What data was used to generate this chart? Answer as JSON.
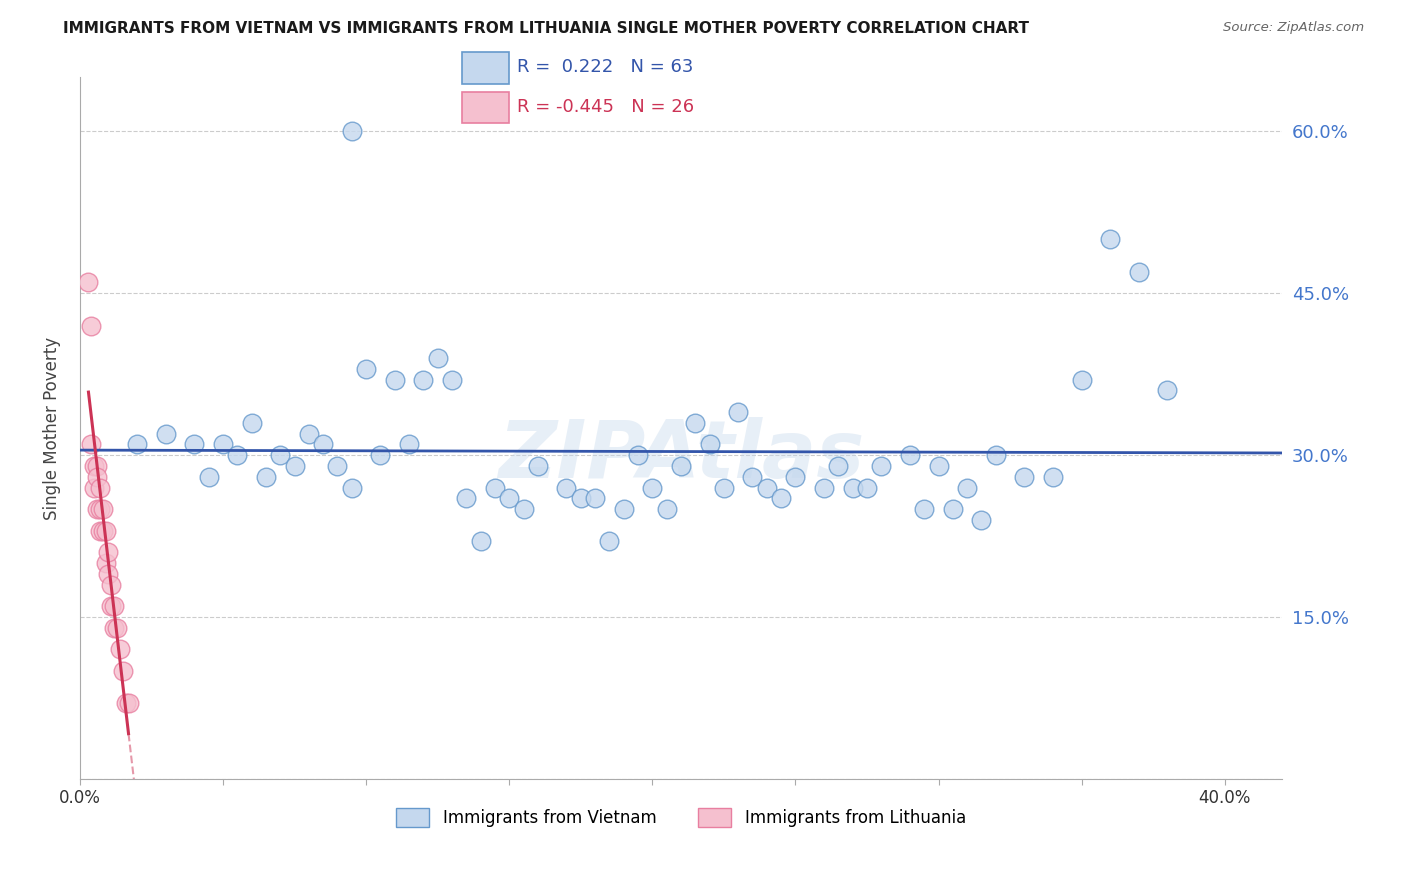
{
  "title": "IMMIGRANTS FROM VIETNAM VS IMMIGRANTS FROM LITHUANIA SINGLE MOTHER POVERTY CORRELATION CHART",
  "source": "Source: ZipAtlas.com",
  "ylabel": "Single Mother Poverty",
  "xlim": [
    0.0,
    0.42
  ],
  "ylim": [
    0.0,
    0.65
  ],
  "x_ticks": [
    0.0,
    0.05,
    0.1,
    0.15,
    0.2,
    0.25,
    0.3,
    0.35,
    0.4
  ],
  "y_ticks": [
    0.0,
    0.15,
    0.3,
    0.45,
    0.6
  ],
  "grid_color": "#cccccc",
  "background_color": "#ffffff",
  "vietnam_fill": "#c5d8ee",
  "vietnam_edge": "#6699cc",
  "lithuania_fill": "#f5c0cf",
  "lithuania_edge": "#e87fa0",
  "trend_vietnam_color": "#3355aa",
  "trend_lithuania_color": "#cc3355",
  "legend_label_vietnam": "Immigrants from Vietnam",
  "legend_label_lithuania": "Immigrants from Lithuania",
  "R_vietnam": "0.222",
  "N_vietnam": "63",
  "R_lithuania": "-0.445",
  "N_lithuania": "26",
  "watermark": "ZIPAtlas",
  "vietnam_x": [
    0.095,
    0.02,
    0.03,
    0.04,
    0.045,
    0.05,
    0.055,
    0.06,
    0.065,
    0.07,
    0.075,
    0.08,
    0.085,
    0.09,
    0.095,
    0.1,
    0.105,
    0.11,
    0.115,
    0.12,
    0.125,
    0.13,
    0.135,
    0.14,
    0.145,
    0.15,
    0.155,
    0.16,
    0.17,
    0.175,
    0.18,
    0.185,
    0.19,
    0.195,
    0.2,
    0.205,
    0.21,
    0.215,
    0.22,
    0.225,
    0.23,
    0.235,
    0.24,
    0.245,
    0.25,
    0.26,
    0.265,
    0.27,
    0.275,
    0.28,
    0.29,
    0.295,
    0.3,
    0.305,
    0.31,
    0.315,
    0.32,
    0.33,
    0.34,
    0.35,
    0.36,
    0.37,
    0.38
  ],
  "vietnam_y": [
    0.6,
    0.31,
    0.32,
    0.31,
    0.28,
    0.31,
    0.3,
    0.33,
    0.28,
    0.3,
    0.29,
    0.32,
    0.31,
    0.29,
    0.27,
    0.38,
    0.3,
    0.37,
    0.31,
    0.37,
    0.39,
    0.37,
    0.26,
    0.22,
    0.27,
    0.26,
    0.25,
    0.29,
    0.27,
    0.26,
    0.26,
    0.22,
    0.25,
    0.3,
    0.27,
    0.25,
    0.29,
    0.33,
    0.31,
    0.27,
    0.34,
    0.28,
    0.27,
    0.26,
    0.28,
    0.27,
    0.29,
    0.27,
    0.27,
    0.29,
    0.3,
    0.25,
    0.29,
    0.25,
    0.27,
    0.24,
    0.3,
    0.28,
    0.28,
    0.37,
    0.5,
    0.47,
    0.36
  ],
  "lithuania_x": [
    0.003,
    0.004,
    0.004,
    0.005,
    0.005,
    0.006,
    0.006,
    0.006,
    0.007,
    0.007,
    0.007,
    0.008,
    0.008,
    0.009,
    0.009,
    0.01,
    0.01,
    0.011,
    0.011,
    0.012,
    0.012,
    0.013,
    0.014,
    0.015,
    0.016,
    0.017
  ],
  "lithuania_y": [
    0.46,
    0.42,
    0.31,
    0.29,
    0.27,
    0.29,
    0.28,
    0.25,
    0.27,
    0.25,
    0.23,
    0.25,
    0.23,
    0.23,
    0.2,
    0.21,
    0.19,
    0.18,
    0.16,
    0.16,
    0.14,
    0.14,
    0.12,
    0.1,
    0.07,
    0.07
  ],
  "trend_v_x0": 0.0,
  "trend_v_x1": 0.42,
  "trend_l_solid_x0": 0.003,
  "trend_l_solid_x1": 0.017,
  "trend_l_dash_x1": 0.085
}
